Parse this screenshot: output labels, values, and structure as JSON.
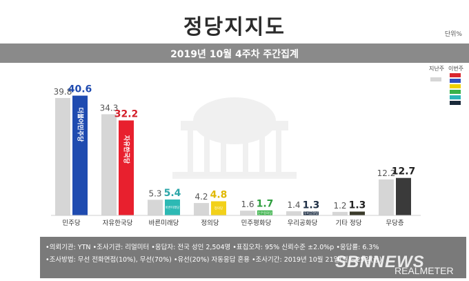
{
  "header": {
    "title": "정당지지도",
    "unit": "단위%",
    "subtitle": "2019년 10월 4주차 주간집계"
  },
  "legend": {
    "prev_label": "지난주",
    "curr_label": "이번주",
    "prev_color": "#d6d6d6",
    "curr_colors": [
      "#d9262e",
      "#2f4fbf",
      "#f0d000",
      "#38b24a",
      "#2bb5b8",
      "#1a2a3a"
    ]
  },
  "chart_data": {
    "type": "bar",
    "categories": [
      "민주당",
      "자유한국당",
      "바른미래당",
      "정의당",
      "민주평화당",
      "우리공화당",
      "기타 정당",
      "무당층"
    ],
    "series": [
      {
        "name": "지난주",
        "values": [
          39.8,
          34.3,
          5.3,
          4.2,
          1.6,
          1.4,
          1.2,
          12.2
        ]
      },
      {
        "name": "이번주",
        "values": [
          40.6,
          32.2,
          5.4,
          4.8,
          1.7,
          1.3,
          1.3,
          12.7
        ]
      }
    ],
    "bar_colors": [
      "#1f4bb0",
      "#e8202e",
      "#2db9b4",
      "#f2d11a",
      "#3bb34a",
      "#1e2f45",
      "#3a3a2a",
      "#3a3a3a"
    ],
    "label_colors": [
      "#1f4bb0",
      "#d31f2a",
      "#2ba6a8",
      "#e0b800",
      "#2f9e3f",
      "#1e2f45",
      "#222222",
      "#222222"
    ],
    "bar_labels": [
      "더불어민주당",
      "자유한국당",
      "바른미래당",
      "정의당",
      "민주평화당",
      "우리공화당",
      "",
      ""
    ],
    "ylim": [
      0,
      44
    ]
  },
  "footer": {
    "line1": "•의뢰기관: YTN •조사기관: 리얼미터 •응답자: 전국 성인 2,504명 •표집오차: 95% 신뢰수준 ±2.0%p •응답률: 6.3%",
    "line2": "•조사방법: 무선 전화면접(10%), 무선(70%) •유선(20%) 자동응답 혼용 •조사기간: 2019년 10월 21일(월)~25일(금)",
    "watermark": "SBNNEWS",
    "brand": "REALMETER"
  }
}
